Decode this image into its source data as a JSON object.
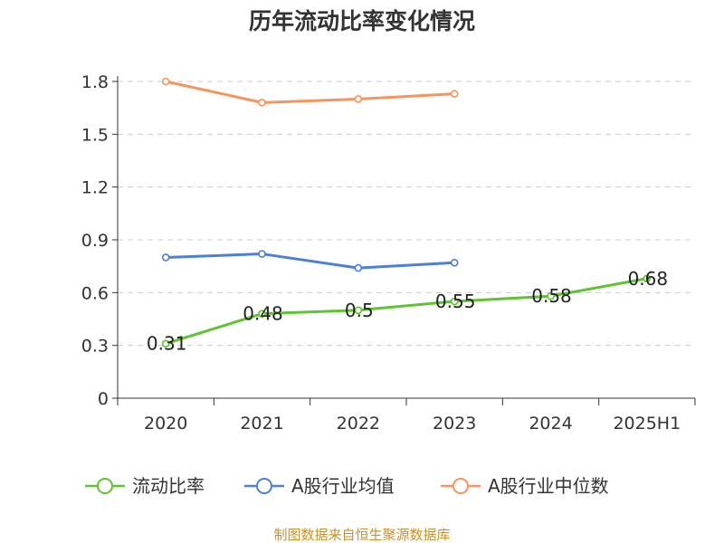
{
  "chart_data": {
    "type": "line",
    "title": "历年流动比率变化情况",
    "categories": [
      "2020",
      "2021",
      "2022",
      "2023",
      "2024",
      "2025H1"
    ],
    "ylim": [
      0,
      1.8
    ],
    "yticks": [
      "0",
      "0.3",
      "0.6",
      "0.9",
      "1.2",
      "1.5",
      "1.8"
    ],
    "grid": true,
    "legend_position": "bottom",
    "series": [
      {
        "name": "流动比率",
        "color": "#5ec42f",
        "values": [
          0.31,
          0.48,
          0.5,
          0.55,
          0.58,
          0.68
        ],
        "labels": [
          "0.31",
          "0.48",
          "0.5",
          "0.55",
          "0.58",
          "0.68"
        ]
      },
      {
        "name": "A股行业均值",
        "color": "#4a80d8",
        "values": [
          0.8,
          0.82,
          0.74,
          0.77,
          null,
          null
        ]
      },
      {
        "name": "A股行业中位数",
        "color": "#f7935e",
        "values": [
          1.8,
          1.68,
          1.7,
          1.73,
          null,
          null
        ]
      }
    ],
    "source": "制图数据来自恒生聚源数据库"
  }
}
